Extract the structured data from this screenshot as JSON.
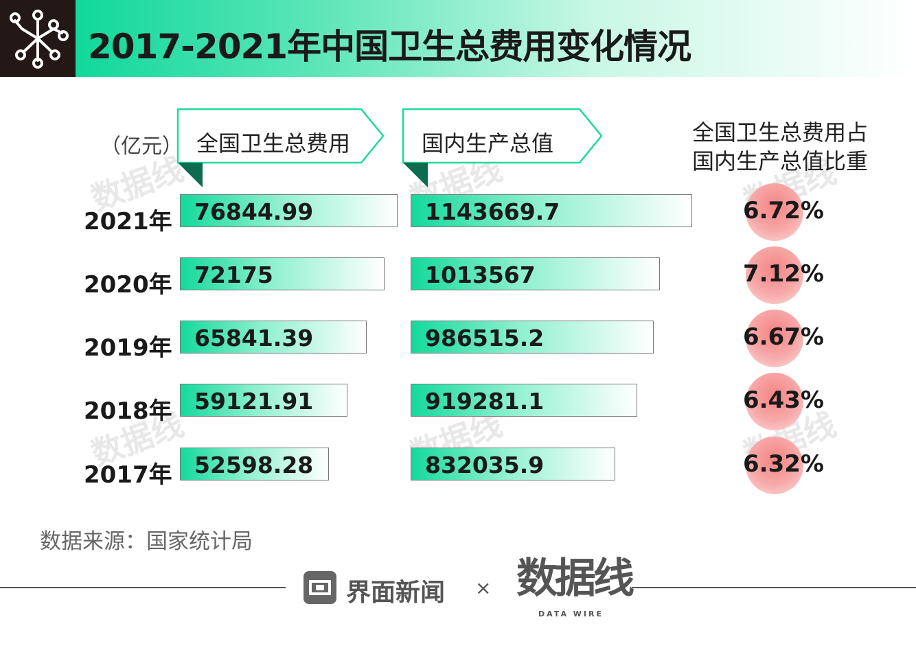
{
  "header": {
    "title": "2017-2021年中国卫生总费用变化情况",
    "accent_color": "#10d89a",
    "logo_color": "#231816",
    "logo_icon": "network-molecule-icon"
  },
  "columns": {
    "unit": "（亿元）",
    "health_expense": "全国卫生总费用",
    "gdp": "国内生产总值",
    "ratio_line1": "全国卫生总费用占",
    "ratio_line2": "国内生产总值比重"
  },
  "chart_data": {
    "type": "bar",
    "categories": [
      "2021年",
      "2020年",
      "2019年",
      "2018年",
      "2017年"
    ],
    "series": [
      {
        "name": "全国卫生总费用",
        "values": [
          76844.99,
          72175,
          65841.39,
          59121.91,
          52598.28
        ],
        "labels": [
          "76844.99",
          "72175",
          "65841.39",
          "59121.91",
          "52598.28"
        ]
      },
      {
        "name": "国内生产总值",
        "values": [
          1143669.7,
          1013567,
          986515.2,
          919281.1,
          832035.9
        ],
        "labels": [
          "1143669.7",
          "1013567",
          "986515.2",
          "919281.1",
          "832035.9"
        ]
      },
      {
        "name": "全国卫生总费用占国内生产总值比重",
        "values": [
          6.72,
          7.12,
          6.67,
          6.43,
          6.32
        ],
        "labels": [
          "6.72%",
          "7.12%",
          "6.67%",
          "6.43%",
          "6.32%"
        ]
      }
    ],
    "ylabel": "（亿元）",
    "bar_gradient": [
      "#14d99b",
      "#ffffff"
    ],
    "circle_color": "#f48484"
  },
  "watermark": "数据线",
  "footer": {
    "source": "数据来源：国家统计局",
    "brand1": "界面新闻",
    "brand_sep": "×",
    "brand2": "数据线",
    "brand2_sub": "DATA WIRE"
  }
}
